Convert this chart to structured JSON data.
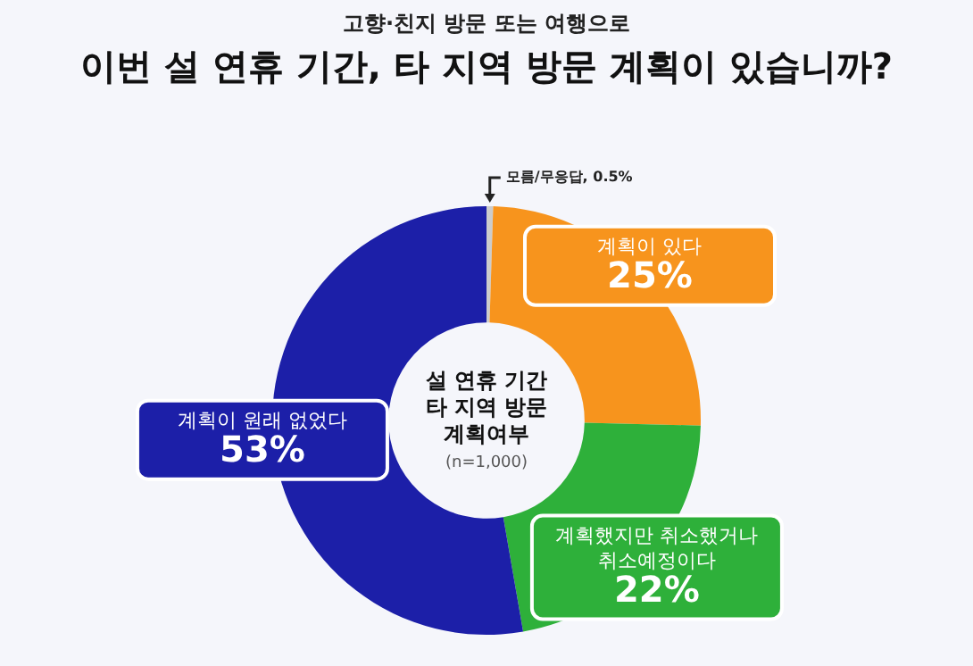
{
  "chart_data": {
    "type": "donut",
    "title": "이번 설 연휴 기간, 타 지역 방문 계획이 있습니까?",
    "subtitle": "고향·친지 방문 또는 여행으로",
    "categories": [
      "모름/무응답",
      "계획이 있다",
      "계획했지만 취소했거나 취소예정이다",
      "계획이 원래 없었다"
    ],
    "values": [
      0.5,
      25,
      22,
      53
    ],
    "value_labels": [
      "0.5%",
      "25%",
      "22%",
      "53%"
    ],
    "colors": [
      "#cccccc",
      "#f7941d",
      "#2eb03a",
      "#1c1fa8"
    ],
    "annotations": [
      "설 연휴 기간\n타 지역 방문\n계획여부",
      "(n=1,000)"
    ],
    "legend": false
  }
}
